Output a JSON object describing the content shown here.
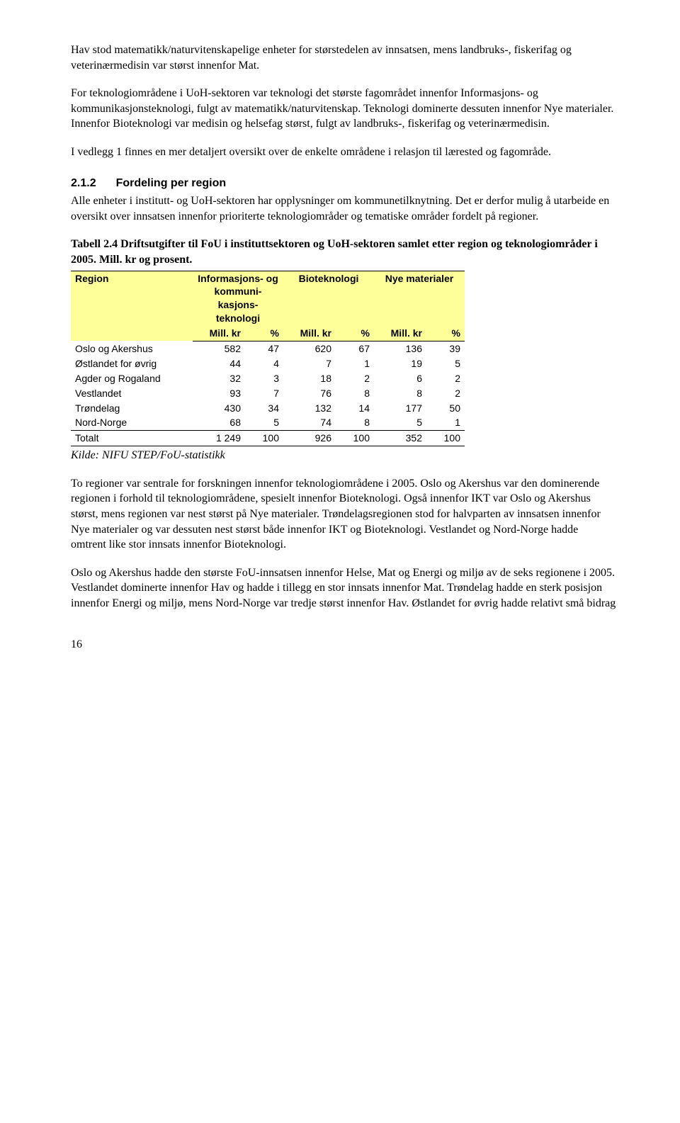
{
  "para1": "Hav stod matematikk/naturvitenskapelige enheter for størstedelen av innsatsen, mens landbruks-, fiskerifag og veterinærmedisin var størst innenfor Mat.",
  "para2": "For teknologiområdene i UoH-sektoren var teknologi det største fagområdet innenfor Informasjons- og kommunikasjonsteknologi, fulgt av matematikk/naturvitenskap. Teknologi dominerte dessuten innenfor Nye materialer. Innenfor Bioteknologi var medisin og helsefag størst, fulgt av landbruks-, fiskerifag og veterinærmedisin.",
  "para3": "I vedlegg 1 finnes en mer detaljert oversikt over de enkelte områdene i relasjon til lærested og fagområde.",
  "section": {
    "num": "2.1.2",
    "title": "Fordeling per region"
  },
  "para4": "Alle enheter i institutt- og UoH-sektoren har opplysninger om kommunetilknytning. Det er derfor mulig å utarbeide en oversikt over innsatsen innenfor prioriterte teknologiområder og tematiske områder fordelt på regioner.",
  "table": {
    "title": "Tabell 2.4 Driftsutgifter til FoU i instituttsektoren og UoH-sektoren samlet etter region og teknologiområder i 2005. Mill. kr og prosent.",
    "header_bg": "#ffff99",
    "col_region": "Region",
    "groups": [
      "Informasjons- og kommuni-kasjons-teknologi",
      "Bioteknologi",
      "Nye materialer"
    ],
    "sub_val": "Mill. kr",
    "sub_pct": "%",
    "rows": [
      {
        "label": "Oslo og Akershus",
        "v": [
          "582",
          "47",
          "620",
          "67",
          "136",
          "39"
        ]
      },
      {
        "label": "Østlandet for øvrig",
        "v": [
          "44",
          "4",
          "7",
          "1",
          "19",
          "5"
        ]
      },
      {
        "label": "Agder og Rogaland",
        "v": [
          "32",
          "3",
          "18",
          "2",
          "6",
          "2"
        ]
      },
      {
        "label": "Vestlandet",
        "v": [
          "93",
          "7",
          "76",
          "8",
          "8",
          "2"
        ]
      },
      {
        "label": "Trøndelag",
        "v": [
          "430",
          "34",
          "132",
          "14",
          "177",
          "50"
        ]
      },
      {
        "label": "Nord-Norge",
        "v": [
          "68",
          "5",
          "74",
          "8",
          "5",
          "1"
        ]
      }
    ],
    "total": {
      "label": "Totalt",
      "v": [
        "1 249",
        "100",
        "926",
        "100",
        "352",
        "100"
      ]
    },
    "kilde": "Kilde: NIFU STEP/FoU-statistikk"
  },
  "para5": "To regioner var sentrale for forskningen innenfor teknologiområdene i 2005. Oslo og Akershus var den dominerende regionen i forhold til teknologiområdene, spesielt innenfor Bioteknologi. Også innenfor IKT var Oslo og Akershus størst, mens regionen var nest størst på Nye materialer. Trøndelagsregionen stod for halvparten av innsatsen innenfor Nye materialer og var dessuten nest størst både innenfor IKT og Bioteknologi. Vestlandet og Nord-Norge hadde omtrent like stor innsats innenfor Bioteknologi.",
  "para6": "Oslo og Akershus hadde den største FoU-innsatsen innenfor Helse, Mat og Energi og miljø av de seks regionene i 2005. Vestlandet dominerte innenfor Hav og hadde i tillegg en stor innsats innenfor Mat. Trøndelag hadde en sterk posisjon innenfor Energi og miljø, mens Nord-Norge var tredje størst innenfor Hav. Østlandet for øvrig hadde relativt små bidrag",
  "pagenum": "16"
}
